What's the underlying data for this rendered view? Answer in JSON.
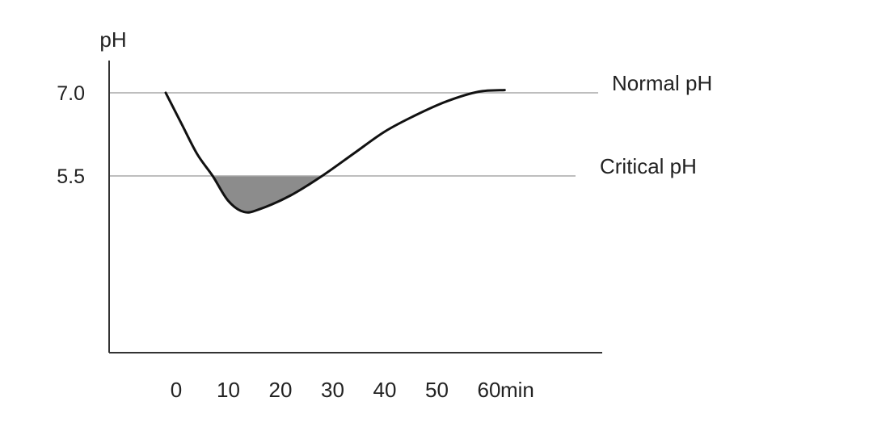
{
  "colors": {
    "curve": "#111111",
    "reference_line": "#a8a8a8",
    "axis": "#333333",
    "shading": "#8c8c8c",
    "text": "#222222"
  },
  "chart_data": {
    "type": "line",
    "ylabel": "pH",
    "xlabel": "",
    "x_unit": "min",
    "x_ticks": [
      0,
      10,
      20,
      30,
      40,
      50,
      60
    ],
    "y_ticks": [
      {
        "value": 5.5,
        "label": "5.5"
      },
      {
        "value": 7.0,
        "label": "7.0"
      }
    ],
    "xlim": [
      0,
      70
    ],
    "ylim": [
      0,
      7.5
    ],
    "reference_lines": [
      {
        "name": "Normal pH",
        "y": 7.0
      },
      {
        "name": "Critical pH",
        "y": 5.5
      }
    ],
    "shaded_region": "curve below Critical pH",
    "grid": false,
    "series": [
      {
        "points": [
          [
            0,
            7.0
          ],
          [
            3,
            6.45
          ],
          [
            6,
            5.9
          ],
          [
            9,
            5.5
          ],
          [
            12,
            5.05
          ],
          [
            15,
            4.85
          ],
          [
            18,
            4.9
          ],
          [
            24,
            5.15
          ],
          [
            30,
            5.5
          ],
          [
            36,
            5.9
          ],
          [
            42,
            6.3
          ],
          [
            48,
            6.6
          ],
          [
            54,
            6.85
          ],
          [
            60,
            7.02
          ],
          [
            65,
            7.05
          ]
        ]
      }
    ]
  }
}
